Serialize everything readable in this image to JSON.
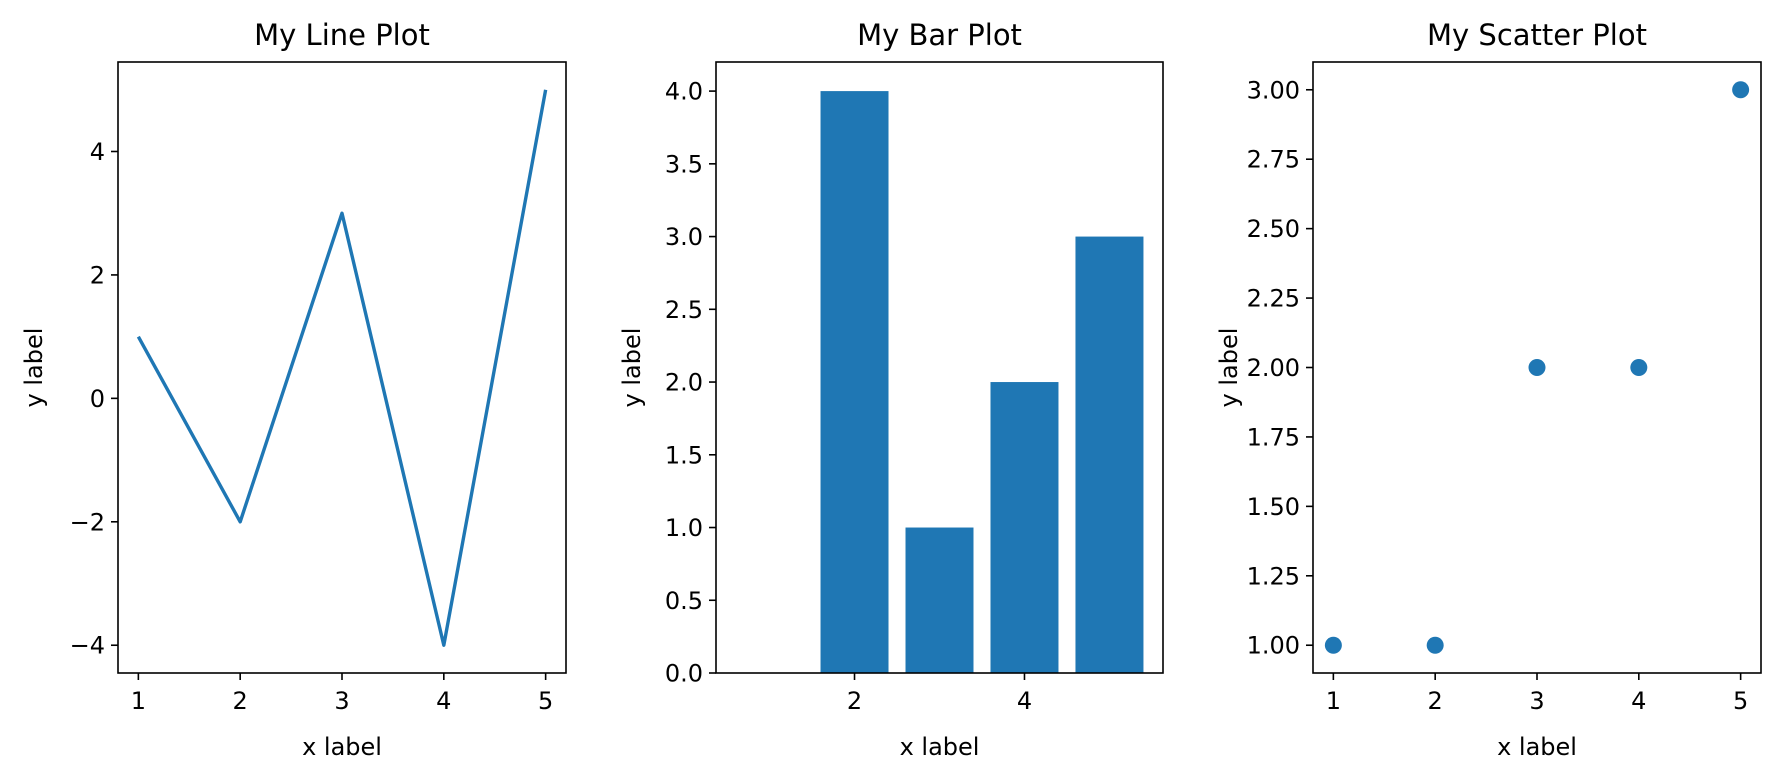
{
  "chart_data": [
    {
      "type": "line",
      "title": "My Line Plot",
      "xlabel": "x label",
      "ylabel": "y label",
      "x": [
        1,
        2,
        3,
        4,
        5
      ],
      "series": [
        {
          "values": [
            1,
            -2,
            3,
            -4,
            5
          ]
        }
      ],
      "xlim": [
        0.8,
        5.2
      ],
      "ylim": [
        -4.45,
        5.45
      ],
      "xticks": [
        1,
        2,
        3,
        4,
        5
      ],
      "xtick_labels": [
        "1",
        "2",
        "3",
        "4",
        "5"
      ],
      "yticks": [
        -4,
        -2,
        0,
        2,
        4
      ],
      "ytick_labels": [
        "−4",
        "−2",
        "0",
        "2",
        "4"
      ],
      "color": "#1f77b4",
      "grid": false
    },
    {
      "type": "bar",
      "title": "My Bar Plot",
      "xlabel": "x label",
      "ylabel": "y label",
      "x": [
        2,
        3,
        4,
        5
      ],
      "values": [
        4,
        1,
        2,
        3
      ],
      "bar_width": 0.8,
      "xlim": [
        0.37,
        5.63
      ],
      "ylim": [
        0,
        4.2
      ],
      "xticks": [
        2,
        4
      ],
      "xtick_labels": [
        "2",
        "4"
      ],
      "yticks": [
        0,
        0.5,
        1,
        1.5,
        2,
        2.5,
        3,
        3.5,
        4
      ],
      "ytick_labels": [
        "0.0",
        "0.5",
        "1.0",
        "1.5",
        "2.0",
        "2.5",
        "3.0",
        "3.5",
        "4.0"
      ],
      "color": "#1f77b4",
      "grid": false
    },
    {
      "type": "scatter",
      "title": "My Scatter Plot",
      "xlabel": "x label",
      "ylabel": "y label",
      "x": [
        1,
        2,
        3,
        4,
        5
      ],
      "series": [
        {
          "values": [
            1,
            1,
            2,
            2,
            3
          ]
        }
      ],
      "xlim": [
        0.8,
        5.2
      ],
      "ylim": [
        0.9,
        3.1
      ],
      "xticks": [
        1,
        2,
        3,
        4,
        5
      ],
      "xtick_labels": [
        "1",
        "2",
        "3",
        "4",
        "5"
      ],
      "yticks": [
        1,
        1.25,
        1.5,
        1.75,
        2,
        2.25,
        2.5,
        2.75,
        3
      ],
      "ytick_labels": [
        "1.00",
        "1.25",
        "1.50",
        "1.75",
        "2.00",
        "2.25",
        "2.50",
        "2.75",
        "3.00"
      ],
      "color": "#1f77b4",
      "grid": false
    }
  ]
}
